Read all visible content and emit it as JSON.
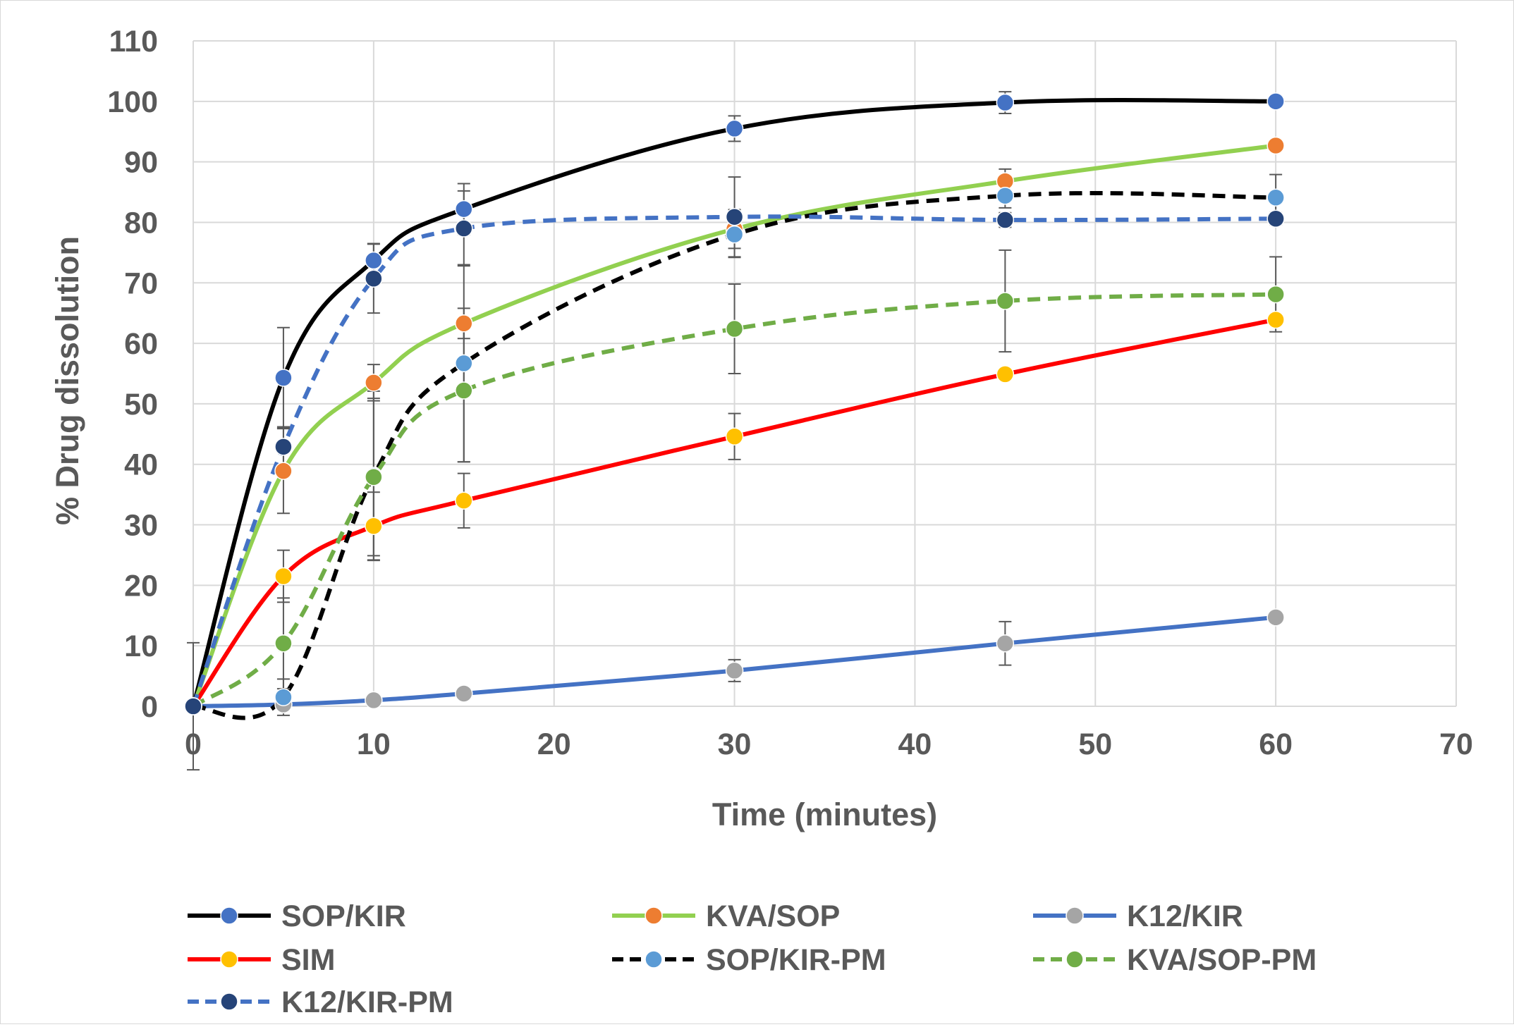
{
  "chart_data": {
    "type": "line",
    "title": "",
    "xlabel": "Time (minutes)",
    "ylabel": "% Drug dissolution",
    "xlim": [
      0,
      70
    ],
    "ylim": [
      0,
      110
    ],
    "xticks": [
      0,
      10,
      20,
      30,
      40,
      50,
      60,
      70
    ],
    "yticks": [
      0,
      10,
      20,
      30,
      40,
      50,
      60,
      70,
      80,
      90,
      100,
      110
    ],
    "grid": true,
    "legend_position": "bottom",
    "x": [
      0,
      5,
      10,
      15,
      30,
      45,
      60
    ],
    "series": [
      {
        "name": "SOP/KIR",
        "values": [
          0,
          54.3,
          73.7,
          82.2,
          95.5,
          99.8,
          100
        ],
        "errors": [
          0,
          8.3,
          2.8,
          4.2,
          2.1,
          1.8,
          0
        ],
        "line_color": "#000000",
        "marker_color": "#4472c4",
        "dashed": false
      },
      {
        "name": "KVA/SOP",
        "values": [
          0,
          38.9,
          53.5,
          63.3,
          78.9,
          86.8,
          92.7
        ],
        "errors": [
          0,
          7.0,
          3.0,
          2.5,
          3.2,
          2.0,
          0
        ],
        "line_color": "#92d050",
        "marker_color": "#ed7d31",
        "dashed": false
      },
      {
        "name": "K12/KIR",
        "values": [
          0,
          0.3,
          1.0,
          2.1,
          5.9,
          10.4,
          14.7
        ],
        "errors": [
          0,
          0,
          0,
          0,
          1.8,
          3.6,
          0
        ],
        "line_color": "#4472c4",
        "marker_color": "#a5a5a5",
        "dashed": false
      },
      {
        "name": "SIM",
        "values": [
          0,
          21.5,
          29.8,
          34.0,
          44.6,
          54.9,
          63.9
        ],
        "errors": [
          0,
          4.3,
          5.6,
          4.5,
          3.8,
          0,
          0
        ],
        "line_color": "#ff0000",
        "marker_color": "#ffc000",
        "dashed": false
      },
      {
        "name": "SOP/KIR-PM",
        "values": [
          0,
          1.5,
          38.1,
          56.7,
          78.0,
          84.4,
          84.1
        ],
        "errors": [
          0,
          3.0,
          14.0,
          16.3,
          3.8,
          2.0,
          3.8
        ],
        "line_color": "#000000",
        "marker_color": "#5b9bd5",
        "dashed": true
      },
      {
        "name": "KVA/SOP-PM",
        "values": [
          0,
          10.4,
          37.9,
          52.2,
          62.4,
          67.0,
          68.1
        ],
        "errors": [
          0,
          7.5,
          13.0,
          11.8,
          7.4,
          8.4,
          6.2
        ],
        "line_color": "#70ad47",
        "marker_color": "#70ad47",
        "dashed": true
      },
      {
        "name": "K12/KIR-PM",
        "values": [
          0,
          42.9,
          70.7,
          79.0,
          80.9,
          80.4,
          80.6
        ],
        "errors": [
          10.5,
          3.3,
          5.7,
          6.2,
          6.6,
          1.2,
          1.0
        ],
        "line_color": "#4472c4",
        "marker_color": "#264478",
        "dashed": true
      }
    ]
  }
}
